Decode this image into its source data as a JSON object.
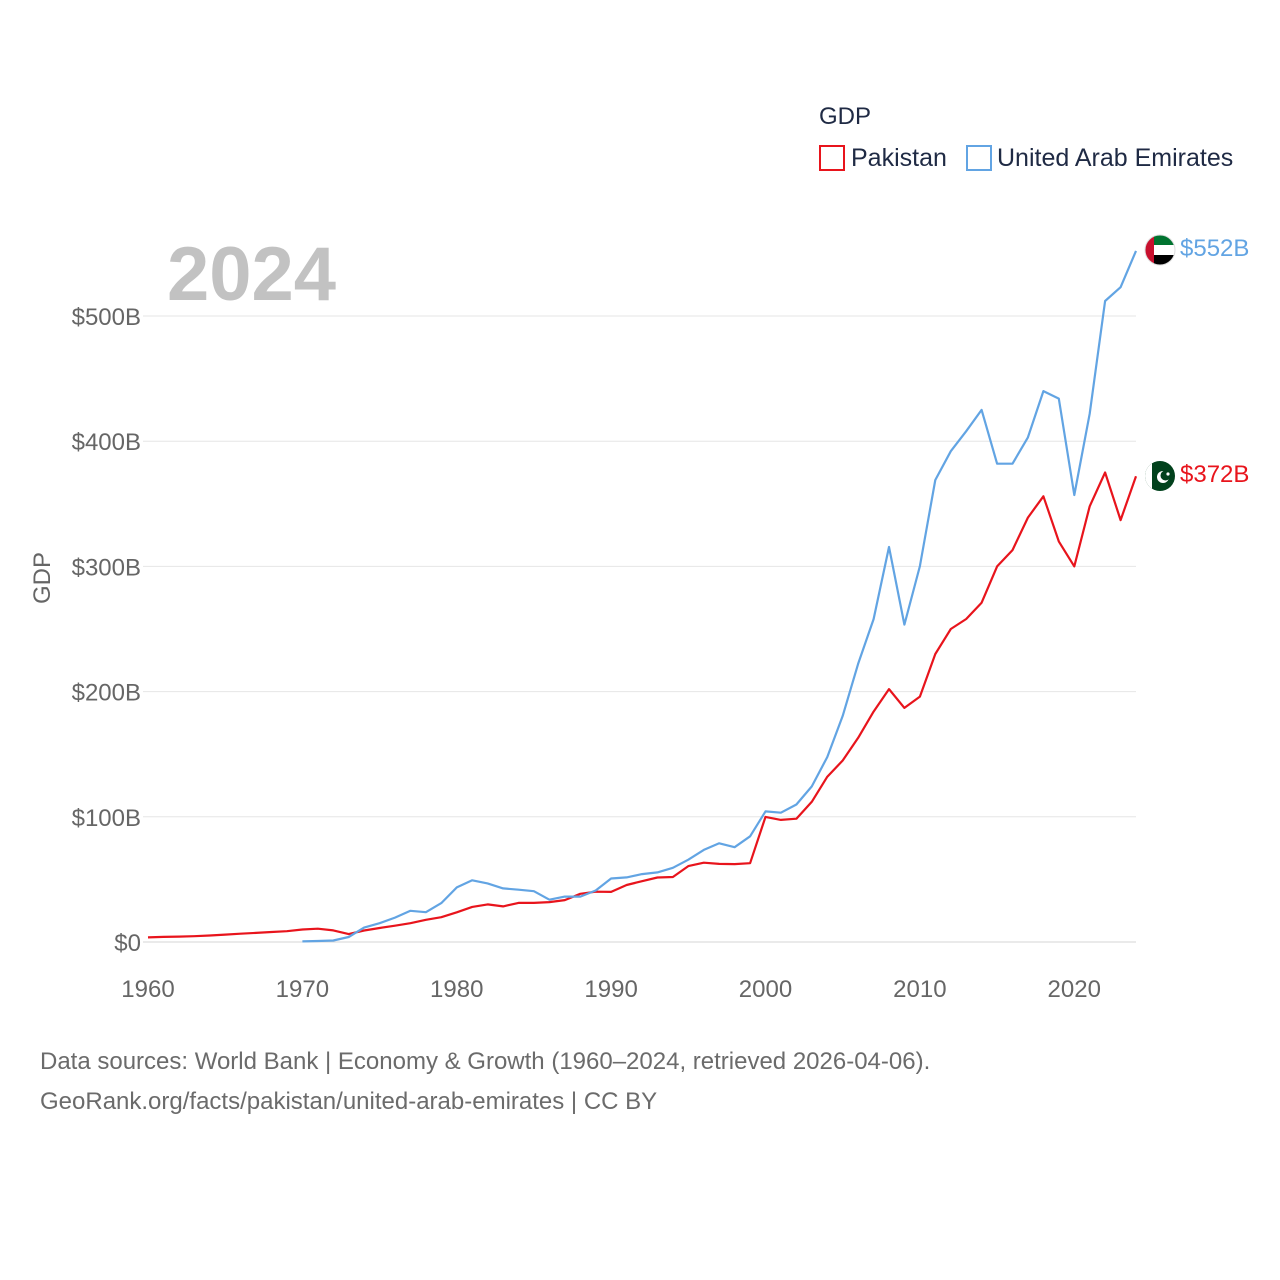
{
  "chart_data": {
    "type": "line",
    "title": "GDP",
    "ylabel": "GDP",
    "xlabel": "",
    "current_year_label": "2024",
    "xlim": [
      1960,
      2024
    ],
    "ylim": [
      0,
      500
    ],
    "x_ticks": [
      1960,
      1970,
      1980,
      1990,
      2000,
      2010,
      2020
    ],
    "x_tick_labels": [
      "1960",
      "1970",
      "1980",
      "1990",
      "2000",
      "2010",
      "2020"
    ],
    "y_ticks": [
      0,
      100,
      200,
      300,
      400,
      500
    ],
    "y_tick_labels": [
      "$0",
      "$100B",
      "$200B",
      "$300B",
      "$400B",
      "$500B"
    ],
    "grid": true,
    "legend_position": "top-right",
    "units": "billion USD",
    "series": [
      {
        "name": "Pakistan",
        "color": "#e8141c",
        "flag": "pakistan-flag-icon",
        "end_label": "$372B",
        "x": [
          1960,
          1961,
          1962,
          1963,
          1964,
          1965,
          1966,
          1967,
          1968,
          1969,
          1970,
          1971,
          1972,
          1973,
          1974,
          1975,
          1976,
          1977,
          1978,
          1979,
          1980,
          1981,
          1982,
          1983,
          1984,
          1985,
          1986,
          1987,
          1988,
          1989,
          1990,
          1991,
          1992,
          1993,
          1994,
          1995,
          1996,
          1997,
          1998,
          1999,
          2000,
          2001,
          2002,
          2003,
          2004,
          2005,
          2006,
          2007,
          2008,
          2009,
          2010,
          2011,
          2012,
          2013,
          2014,
          2015,
          2016,
          2017,
          2018,
          2019,
          2020,
          2021,
          2022,
          2023,
          2024
        ],
        "values": [
          3.7,
          4.1,
          4.3,
          4.6,
          5.2,
          5.9,
          6.6,
          7.3,
          8.0,
          8.6,
          10.0,
          10.6,
          9.3,
          6.3,
          9.2,
          11.2,
          13.0,
          15.0,
          17.7,
          19.8,
          23.7,
          28.0,
          30.0,
          28.4,
          31.2,
          31.2,
          31.9,
          33.5,
          38.5,
          40.2,
          40.0,
          45.5,
          48.6,
          51.5,
          51.9,
          60.6,
          63.3,
          62.4,
          62.2,
          62.9,
          99.9,
          97.5,
          98.5,
          112.0,
          132.0,
          145.0,
          163.0,
          184.0,
          202.0,
          187.0,
          196.0,
          230.0,
          250.0,
          258.0,
          271.0,
          300.0,
          313.0,
          339.0,
          356.0,
          320.0,
          300.0,
          348.0,
          375.0,
          337.0,
          372.0
        ]
      },
      {
        "name": "United Arab Emirates",
        "color": "#62a4e3",
        "flag": "uae-flag-icon",
        "end_label": "$552B",
        "x": [
          1970,
          1971,
          1972,
          1973,
          1974,
          1975,
          1976,
          1977,
          1978,
          1979,
          1980,
          1981,
          1982,
          1983,
          1984,
          1985,
          1986,
          1987,
          1988,
          1989,
          1990,
          1991,
          1992,
          1993,
          1994,
          1995,
          1996,
          1997,
          1998,
          1999,
          2000,
          2001,
          2002,
          2003,
          2004,
          2005,
          2006,
          2007,
          2008,
          2009,
          2010,
          2011,
          2012,
          2013,
          2014,
          2015,
          2016,
          2017,
          2018,
          2019,
          2020,
          2021,
          2022,
          2023,
          2024
        ],
        "values": [
          0.5,
          0.8,
          1.2,
          4.0,
          11.5,
          15.0,
          19.5,
          24.9,
          23.8,
          31.1,
          43.6,
          49.3,
          46.8,
          42.8,
          41.8,
          40.6,
          33.8,
          36.3,
          36.3,
          41.1,
          50.7,
          51.6,
          54.2,
          55.6,
          59.3,
          65.7,
          73.6,
          78.8,
          75.7,
          84.4,
          104.3,
          103.3,
          109.8,
          124.3,
          147.8,
          180.6,
          222.1,
          257.9,
          315.5,
          253.5,
          300.2,
          369.0,
          392.0,
          408.0,
          425.0,
          382.0,
          382.0,
          403.0,
          440.0,
          434.0,
          357.0,
          422.0,
          512.0,
          523.0,
          552.0
        ]
      }
    ],
    "footer": {
      "line1": "Data sources: World Bank | Economy & Growth (1960–2024, retrieved 2026-04-06).",
      "line2": "GeoRank.org/facts/pakistan/united-arab-emirates | CC BY"
    }
  }
}
